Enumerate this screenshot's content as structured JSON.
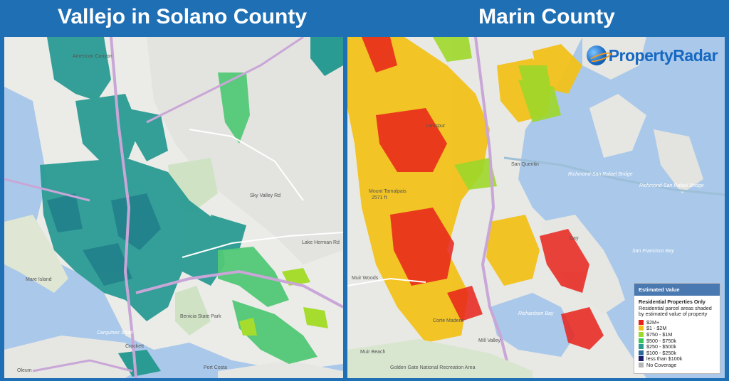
{
  "titles": {
    "left": "Vallejo in Solano County",
    "right": "Marin County"
  },
  "brand": {
    "name": "PropertyRadar",
    "icon": "globe-icon"
  },
  "legend": {
    "header": "Estimated Value",
    "subtitle": "Residential Properties Only",
    "description": "Residential parcel areas shaded by estimated value of property",
    "items": [
      {
        "label": "$2M+",
        "color": "#e8231b"
      },
      {
        "label": "$1 - $2M",
        "color": "#f2c21a"
      },
      {
        "label": "$750 - $1M",
        "color": "#9ed82a"
      },
      {
        "label": "$500 - $750k",
        "color": "#34c75a"
      },
      {
        "label": "$250 - $500k",
        "color": "#2a9b93"
      },
      {
        "label": "$100 - $250k",
        "color": "#2a6b9b"
      },
      {
        "label": "less than $100k",
        "color": "#1c1f6e"
      },
      {
        "label": "No Coverage",
        "color": "#b5b5b5"
      }
    ]
  },
  "left_labels": {
    "american_canyon": "American Canyon",
    "mare_island": "Mare Island",
    "benicia": "Benicia State Park",
    "crockett": "Crockett",
    "oleum": "Oleum",
    "port_costa": "Port Costa",
    "carquinez": "Carquinez Strait",
    "lake_herman": "Lake Herman Rd",
    "sky_valley": "Sky Valley Rd"
  },
  "right_labels": {
    "san_quentin": "San Quentin",
    "bridge1": "Richmond-San Rafael Bridge",
    "bridge2": "Richmond-San Rafael Bridge",
    "sf_bay": "San Francisco Bay",
    "richardson": "Richardson Bay",
    "muir_beach": "Muir Beach",
    "ggnra": "Golden Gate National Recreation Area",
    "mill_valley": "Mill Valley",
    "muir_woods": "Muir Woods",
    "mt_tam": "Mount Tamalpais",
    "tam_elev": "2571 ft",
    "cay": "Cay",
    "larkspur": "Larkspur",
    "corte": "Corte Madera"
  }
}
